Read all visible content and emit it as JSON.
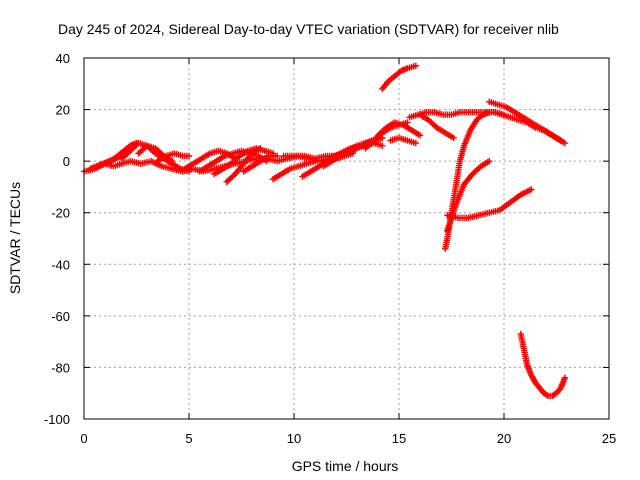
{
  "chart_data": {
    "type": "scatter",
    "title": "Day 245 of 2024, Sidereal Day-to-day VTEC variation (SDTVAR) for receiver nlib",
    "xlabel": "GPS time / hours",
    "ylabel": "SDTVAR / TECUs",
    "xlim": [
      0,
      25
    ],
    "ylim": [
      -100,
      40
    ],
    "xticks": [
      "0",
      "5",
      "10",
      "15",
      "20",
      "25"
    ],
    "yticks": [
      "-100",
      "-80",
      "-60",
      "-40",
      "-20",
      "0",
      "20",
      "40"
    ],
    "grid": true,
    "marker": "plus",
    "color": "#ff0000",
    "series": [
      {
        "x": [
          0.0,
          0.5,
          1.0,
          1.4,
          1.8,
          2.2,
          2.7,
          3.2,
          3.7,
          4.2,
          4.7,
          5.2,
          5.7,
          6.2,
          6.7,
          7.2,
          7.7,
          8.2,
          8.7,
          9.2,
          9.7,
          10.2,
          10.7,
          11.2,
          11.7,
          12.2,
          12.7,
          13.2,
          13.7,
          14.2
        ],
        "y": [
          -4,
          -3,
          -1,
          -2,
          -1,
          0,
          -1,
          0,
          -2,
          -3,
          -4,
          -3,
          -4,
          -3,
          -2,
          -1,
          0,
          1,
          1,
          0,
          1,
          2,
          1,
          0,
          1,
          3,
          5,
          6,
          8,
          9
        ]
      },
      {
        "x": [
          0.3,
          0.6,
          0.9,
          1.2,
          1.5,
          1.8,
          2.0
        ],
        "y": [
          -3,
          -2,
          -1,
          0,
          1,
          2,
          3
        ]
      },
      {
        "x": [
          1.0,
          1.3,
          1.6,
          1.9,
          2.2,
          2.5
        ],
        "y": [
          -1,
          0,
          2,
          4,
          6,
          7
        ]
      },
      {
        "x": [
          1.8,
          2.2,
          2.6,
          3.0,
          3.4,
          3.8,
          4.2,
          4.6,
          5.0
        ],
        "y": [
          1,
          4,
          7,
          6,
          3,
          1,
          -1,
          -3,
          -4
        ]
      },
      {
        "x": [
          2.6,
          3.0,
          3.4,
          3.8,
          4.2
        ],
        "y": [
          3,
          6,
          5,
          2,
          0
        ]
      },
      {
        "x": [
          3.5,
          3.9,
          4.3,
          4.7,
          5.0
        ],
        "y": [
          0,
          2,
          3,
          2,
          2
        ]
      },
      {
        "x": [
          4.8,
          5.2,
          5.6,
          6.0,
          6.4,
          6.8,
          7.2
        ],
        "y": [
          -3,
          -1,
          1,
          3,
          4,
          3,
          1
        ]
      },
      {
        "x": [
          5.5,
          5.9,
          6.3,
          6.7,
          7.1,
          7.5,
          7.9,
          8.3,
          8.7
        ],
        "y": [
          -4,
          -2,
          0,
          2,
          3,
          4,
          3,
          2,
          0
        ]
      },
      {
        "x": [
          6.2,
          6.6,
          7.0,
          7.4,
          7.8,
          8.2,
          8.6,
          9.0
        ],
        "y": [
          -5,
          -3,
          -1,
          2,
          4,
          5,
          4,
          3
        ]
      },
      {
        "x": [
          6.8,
          7.2,
          7.6,
          8.0,
          8.4
        ],
        "y": [
          -8,
          -5,
          -1,
          3,
          5
        ]
      },
      {
        "x": [
          7.6,
          8.0,
          8.4,
          8.8,
          9.2
        ],
        "y": [
          -4,
          -2,
          0,
          2,
          2
        ]
      },
      {
        "x": [
          9.0,
          9.4,
          9.8,
          10.2,
          10.6,
          11.0
        ],
        "y": [
          -7,
          -5,
          -3,
          -2,
          -1,
          0
        ]
      },
      {
        "x": [
          9.5,
          10.0,
          10.5,
          11.0,
          11.5,
          12.0,
          12.5
        ],
        "y": [
          2,
          2,
          2,
          1,
          2,
          2,
          3
        ]
      },
      {
        "x": [
          10.4,
          10.8,
          11.2,
          11.6,
          12.0,
          12.4,
          12.8
        ],
        "y": [
          -6,
          -4,
          -2,
          0,
          1,
          2,
          3
        ]
      },
      {
        "x": [
          11.4,
          11.8,
          12.2,
          12.6,
          13.0,
          13.4,
          13.8,
          14.2
        ],
        "y": [
          -2,
          0,
          2,
          4,
          6,
          7,
          8,
          9
        ]
      },
      {
        "x": [
          12.6,
          13.0,
          13.4,
          13.8,
          14.2
        ],
        "y": [
          3,
          5,
          6,
          7,
          6
        ]
      },
      {
        "x": [
          13.4,
          13.8,
          14.2,
          14.6,
          15.0,
          15.4
        ],
        "y": [
          5,
          8,
          11,
          13,
          14,
          15
        ]
      },
      {
        "x": [
          14.0,
          14.4,
          14.8,
          15.2,
          15.6,
          16.0
        ],
        "y": [
          10,
          13,
          15,
          14,
          12,
          10
        ]
      },
      {
        "x": [
          14.6,
          15.0,
          15.4,
          15.8
        ],
        "y": [
          8,
          9,
          8,
          7
        ]
      },
      {
        "x": [
          14.2,
          14.5,
          14.8,
          15.1,
          15.4,
          15.8
        ],
        "y": [
          28,
          31,
          33,
          35,
          36,
          37
        ]
      },
      {
        "x": [
          15.5,
          15.9,
          16.3,
          16.7,
          17.1,
          17.5,
          17.9,
          18.3,
          18.7,
          19.1,
          19.5,
          19.9,
          20.3,
          20.7,
          21.1,
          21.5,
          21.9,
          22.3,
          22.7
        ],
        "y": [
          17,
          18,
          19,
          19,
          18,
          18,
          19,
          19,
          19,
          19,
          19,
          18,
          17,
          16,
          15,
          13,
          12,
          10,
          8
        ]
      },
      {
        "x": [
          16.0,
          16.4,
          16.8,
          17.2,
          17.6
        ],
        "y": [
          18,
          16,
          13,
          11,
          9
        ]
      },
      {
        "x": [
          17.2,
          17.3,
          17.4,
          17.5,
          17.7,
          17.9,
          18.1,
          18.4,
          18.7,
          19.0,
          19.3,
          19.6,
          20.0
        ],
        "y": [
          -34,
          -30,
          -25,
          -20,
          -10,
          0,
          6,
          12,
          16,
          18,
          19,
          19,
          18
        ]
      },
      {
        "x": [
          17.3,
          17.5,
          17.8,
          18.1,
          18.5,
          18.9,
          19.3
        ],
        "y": [
          -27,
          -22,
          -15,
          -9,
          -5,
          -2,
          0
        ]
      },
      {
        "x": [
          17.3,
          17.8,
          18.3,
          18.8,
          19.3,
          19.8,
          20.3,
          20.8,
          21.3
        ],
        "y": [
          -21,
          -22,
          -22,
          -21,
          -20,
          -19,
          -16,
          -13,
          -11
        ]
      },
      {
        "x": [
          19.3,
          19.7,
          20.1,
          20.5,
          20.9,
          21.3,
          21.7,
          22.1,
          22.5,
          22.9
        ],
        "y": [
          23,
          22,
          21,
          19,
          17,
          15,
          13,
          11,
          9,
          7
        ]
      },
      {
        "x": [
          20.8,
          20.9,
          21.0,
          21.1,
          21.3,
          21.5,
          21.7,
          21.9,
          22.1,
          22.3,
          22.5,
          22.7,
          22.9
        ],
        "y": [
          -67,
          -71,
          -75,
          -79,
          -83,
          -86,
          -88,
          -90,
          -91,
          -91,
          -90,
          -88,
          -84
        ]
      }
    ]
  }
}
